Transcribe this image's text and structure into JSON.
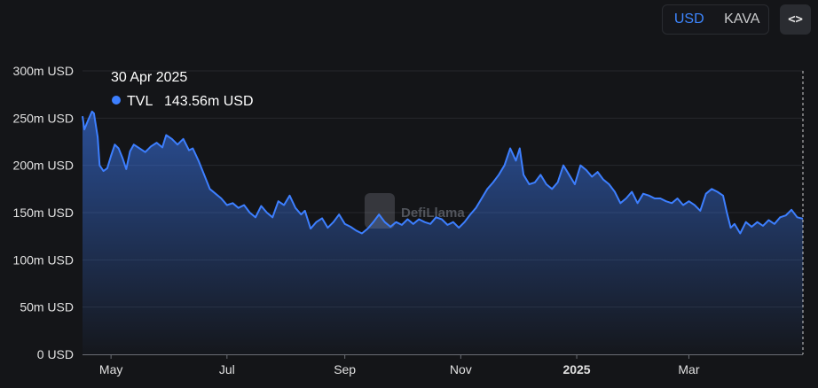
{
  "toggle": {
    "options": [
      "USD",
      "KAVA"
    ],
    "active": "USD"
  },
  "embed_icon": "embed-code-icon",
  "colors": {
    "accent": "#3d86ff",
    "line": "#3d7fff",
    "background": "#141518"
  },
  "tooltip": {
    "date": "30 Apr 2025",
    "series": "TVL",
    "value": "143.56m USD"
  },
  "watermark": "DefiLlama",
  "chart_data": {
    "type": "area",
    "series_name": "TVL",
    "yticks": [
      {
        "v": 0,
        "label": "0 USD"
      },
      {
        "v": 50,
        "label": "50m USD"
      },
      {
        "v": 100,
        "label": "100m USD"
      },
      {
        "v": 150,
        "label": "150m USD"
      },
      {
        "v": 200,
        "label": "200m USD"
      },
      {
        "v": 250,
        "label": "250m USD"
      },
      {
        "v": 300,
        "label": "300m USD"
      }
    ],
    "ylim": [
      0,
      300
    ],
    "xlim": [
      "2024-04-16",
      "2025-04-30"
    ],
    "xticks": [
      {
        "date": "2024-05-01",
        "label": "May",
        "bold": false
      },
      {
        "date": "2024-07-01",
        "label": "Jul",
        "bold": false
      },
      {
        "date": "2024-09-01",
        "label": "Sep",
        "bold": false
      },
      {
        "date": "2024-11-01",
        "label": "Nov",
        "bold": false
      },
      {
        "date": "2025-01-01",
        "label": "2025",
        "bold": true
      },
      {
        "date": "2025-03-01",
        "label": "Mar",
        "bold": false
      }
    ],
    "points": [
      [
        "2024-04-16",
        252
      ],
      [
        "2024-04-17",
        238
      ],
      [
        "2024-04-19",
        248
      ],
      [
        "2024-04-21",
        257
      ],
      [
        "2024-04-22",
        255
      ],
      [
        "2024-04-24",
        230
      ],
      [
        "2024-04-25",
        200
      ],
      [
        "2024-04-27",
        194
      ],
      [
        "2024-04-29",
        197
      ],
      [
        "2024-05-01",
        210
      ],
      [
        "2024-05-03",
        222
      ],
      [
        "2024-05-05",
        218
      ],
      [
        "2024-05-07",
        208
      ],
      [
        "2024-05-09",
        196
      ],
      [
        "2024-05-11",
        215
      ],
      [
        "2024-05-13",
        222
      ],
      [
        "2024-05-16",
        218
      ],
      [
        "2024-05-19",
        214
      ],
      [
        "2024-05-22",
        220
      ],
      [
        "2024-05-25",
        224
      ],
      [
        "2024-05-28",
        219
      ],
      [
        "2024-05-30",
        232
      ],
      [
        "2024-06-02",
        228
      ],
      [
        "2024-06-05",
        222
      ],
      [
        "2024-06-08",
        228
      ],
      [
        "2024-06-11",
        216
      ],
      [
        "2024-06-13",
        218
      ],
      [
        "2024-06-16",
        205
      ],
      [
        "2024-06-19",
        190
      ],
      [
        "2024-06-22",
        175
      ],
      [
        "2024-06-25",
        170
      ],
      [
        "2024-06-28",
        165
      ],
      [
        "2024-07-01",
        158
      ],
      [
        "2024-07-04",
        160
      ],
      [
        "2024-07-07",
        155
      ],
      [
        "2024-07-10",
        158
      ],
      [
        "2024-07-13",
        150
      ],
      [
        "2024-07-16",
        145
      ],
      [
        "2024-07-19",
        157
      ],
      [
        "2024-07-22",
        150
      ],
      [
        "2024-07-25",
        145
      ],
      [
        "2024-07-28",
        162
      ],
      [
        "2024-07-31",
        158
      ],
      [
        "2024-08-03",
        168
      ],
      [
        "2024-08-06",
        155
      ],
      [
        "2024-08-09",
        148
      ],
      [
        "2024-08-11",
        152
      ],
      [
        "2024-08-14",
        133
      ],
      [
        "2024-08-17",
        140
      ],
      [
        "2024-08-20",
        144
      ],
      [
        "2024-08-23",
        134
      ],
      [
        "2024-08-26",
        140
      ],
      [
        "2024-08-29",
        148
      ],
      [
        "2024-09-01",
        138
      ],
      [
        "2024-09-04",
        135
      ],
      [
        "2024-09-07",
        131
      ],
      [
        "2024-09-10",
        128
      ],
      [
        "2024-09-13",
        133
      ],
      [
        "2024-09-16",
        140
      ],
      [
        "2024-09-19",
        148
      ],
      [
        "2024-09-22",
        140
      ],
      [
        "2024-09-25",
        135
      ],
      [
        "2024-09-28",
        140
      ],
      [
        "2024-10-01",
        137
      ],
      [
        "2024-10-04",
        143
      ],
      [
        "2024-10-07",
        138
      ],
      [
        "2024-10-10",
        143
      ],
      [
        "2024-10-13",
        140
      ],
      [
        "2024-10-16",
        138
      ],
      [
        "2024-10-19",
        145
      ],
      [
        "2024-10-22",
        143
      ],
      [
        "2024-10-25",
        137
      ],
      [
        "2024-10-28",
        140
      ],
      [
        "2024-10-31",
        134
      ],
      [
        "2024-11-03",
        140
      ],
      [
        "2024-11-06",
        148
      ],
      [
        "2024-11-09",
        155
      ],
      [
        "2024-11-12",
        165
      ],
      [
        "2024-11-15",
        175
      ],
      [
        "2024-11-18",
        182
      ],
      [
        "2024-11-21",
        190
      ],
      [
        "2024-11-24",
        200
      ],
      [
        "2024-11-27",
        218
      ],
      [
        "2024-11-30",
        205
      ],
      [
        "2024-12-02",
        218
      ],
      [
        "2024-12-04",
        190
      ],
      [
        "2024-12-07",
        180
      ],
      [
        "2024-12-10",
        182
      ],
      [
        "2024-12-13",
        190
      ],
      [
        "2024-12-16",
        180
      ],
      [
        "2024-12-19",
        175
      ],
      [
        "2024-12-22",
        182
      ],
      [
        "2024-12-25",
        200
      ],
      [
        "2024-12-28",
        190
      ],
      [
        "2024-12-31",
        180
      ],
      [
        "2025-01-03",
        200
      ],
      [
        "2025-01-06",
        195
      ],
      [
        "2025-01-09",
        188
      ],
      [
        "2025-01-12",
        193
      ],
      [
        "2025-01-15",
        185
      ],
      [
        "2025-01-18",
        180
      ],
      [
        "2025-01-21",
        172
      ],
      [
        "2025-01-24",
        160
      ],
      [
        "2025-01-27",
        165
      ],
      [
        "2025-01-30",
        172
      ],
      [
        "2025-02-02",
        160
      ],
      [
        "2025-02-05",
        170
      ],
      [
        "2025-02-08",
        168
      ],
      [
        "2025-02-11",
        165
      ],
      [
        "2025-02-14",
        165
      ],
      [
        "2025-02-17",
        162
      ],
      [
        "2025-02-20",
        160
      ],
      [
        "2025-02-23",
        165
      ],
      [
        "2025-02-26",
        158
      ],
      [
        "2025-03-01",
        162
      ],
      [
        "2025-03-04",
        158
      ],
      [
        "2025-03-07",
        152
      ],
      [
        "2025-03-10",
        170
      ],
      [
        "2025-03-13",
        175
      ],
      [
        "2025-03-16",
        172
      ],
      [
        "2025-03-19",
        168
      ],
      [
        "2025-03-21",
        150
      ],
      [
        "2025-03-23",
        134
      ],
      [
        "2025-03-25",
        138
      ],
      [
        "2025-03-28",
        128
      ],
      [
        "2025-03-31",
        140
      ],
      [
        "2025-04-03",
        135
      ],
      [
        "2025-04-06",
        140
      ],
      [
        "2025-04-09",
        136
      ],
      [
        "2025-04-12",
        142
      ],
      [
        "2025-04-15",
        138
      ],
      [
        "2025-04-18",
        145
      ],
      [
        "2025-04-21",
        147
      ],
      [
        "2025-04-24",
        153
      ],
      [
        "2025-04-27",
        145
      ],
      [
        "2025-04-30",
        143.56
      ]
    ]
  }
}
